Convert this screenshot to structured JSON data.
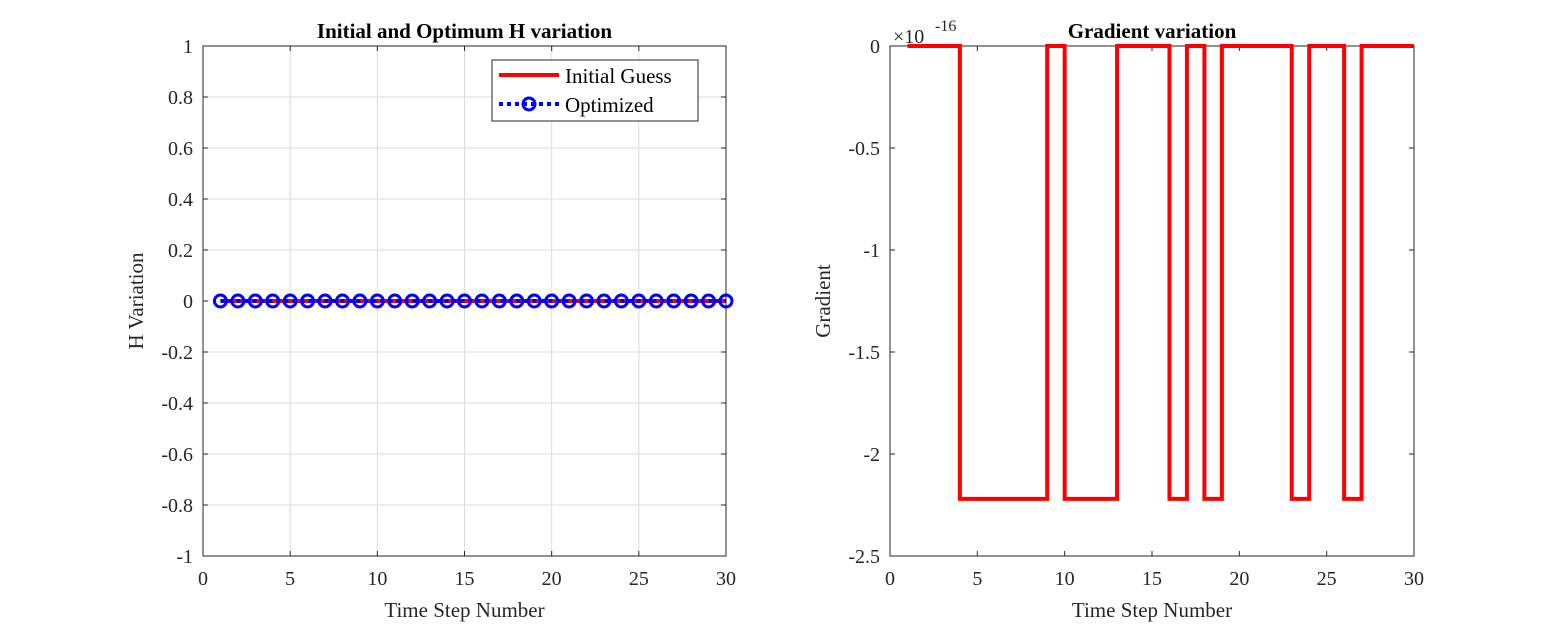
{
  "chart_data": [
    {
      "type": "line",
      "title": "Initial and Optimum H variation",
      "xlabel": "Time Step Number",
      "ylabel": "H Variation",
      "xlim": [
        0,
        30
      ],
      "ylim": [
        -1,
        1
      ],
      "xticks": [
        0,
        5,
        10,
        15,
        20,
        25,
        30
      ],
      "yticks": [
        -1,
        -0.8,
        -0.6,
        -0.4,
        -0.2,
        0,
        0.2,
        0.4,
        0.6,
        0.8,
        1
      ],
      "xtick_labels": [
        "0",
        "5",
        "10",
        "15",
        "20",
        "25",
        "30"
      ],
      "ytick_labels": [
        "-1",
        "-0.8",
        "-0.6",
        "-0.4",
        "-0.2",
        "0",
        "0.2",
        "0.4",
        "0.6",
        "0.8",
        "1"
      ],
      "grid": true,
      "legend_position": "top-right",
      "series": [
        {
          "name": "Initial Guess",
          "color": "#ff0000",
          "style": "solid",
          "x": [
            1,
            2,
            3,
            4,
            5,
            6,
            7,
            8,
            9,
            10,
            11,
            12,
            13,
            14,
            15,
            16,
            17,
            18,
            19,
            20,
            21,
            22,
            23,
            24,
            25,
            26,
            27,
            28,
            29,
            30
          ],
          "y": [
            0,
            0,
            0,
            0,
            0,
            0,
            0,
            0,
            0,
            0,
            0,
            0,
            0,
            0,
            0,
            0,
            0,
            0,
            0,
            0,
            0,
            0,
            0,
            0,
            0,
            0,
            0,
            0,
            0,
            0
          ]
        },
        {
          "name": "Optimized",
          "color": "#0000ff",
          "style": "dotted",
          "marker": "circle",
          "x": [
            1,
            2,
            3,
            4,
            5,
            6,
            7,
            8,
            9,
            10,
            11,
            12,
            13,
            14,
            15,
            16,
            17,
            18,
            19,
            20,
            21,
            22,
            23,
            24,
            25,
            26,
            27,
            28,
            29,
            30
          ],
          "y": [
            0,
            0,
            0,
            0,
            0,
            0,
            0,
            0,
            0,
            0,
            0,
            0,
            0,
            0,
            0,
            0,
            0,
            0,
            0,
            0,
            0,
            0,
            0,
            0,
            0,
            0,
            0,
            0,
            0,
            0
          ]
        }
      ]
    },
    {
      "type": "line",
      "title": "Gradient variation",
      "xlabel": "Time Step Number",
      "ylabel": "Gradient",
      "xlim": [
        0,
        30
      ],
      "ylim": [
        -2.5,
        0
      ],
      "y_exponent_base": "×10",
      "y_exponent": "-16",
      "xticks": [
        0,
        5,
        10,
        15,
        20,
        25,
        30
      ],
      "yticks": [
        -2.5,
        -2,
        -1.5,
        -1,
        -0.5,
        0
      ],
      "xtick_labels": [
        "0",
        "5",
        "10",
        "15",
        "20",
        "25",
        "30"
      ],
      "ytick_labels": [
        "-2.5",
        "-2",
        "-1.5",
        "-1",
        "-0.5",
        "0"
      ],
      "grid": false,
      "series": [
        {
          "color": "#ff0000",
          "style": "stairs",
          "x": [
            1,
            2,
            3,
            4,
            5,
            6,
            7,
            8,
            9,
            10,
            11,
            12,
            13,
            14,
            15,
            16,
            17,
            18,
            19,
            20,
            21,
            22,
            23,
            24,
            25,
            26,
            27,
            28,
            29,
            30
          ],
          "y": [
            0,
            0,
            0,
            -2.22,
            -2.22,
            -2.22,
            -2.22,
            -2.22,
            0,
            -2.22,
            -2.22,
            -2.22,
            0,
            0,
            0,
            -2.22,
            0,
            -2.22,
            0,
            0,
            0,
            0,
            -2.22,
            0,
            0,
            -2.22,
            0,
            0,
            0,
            0
          ]
        }
      ]
    }
  ]
}
